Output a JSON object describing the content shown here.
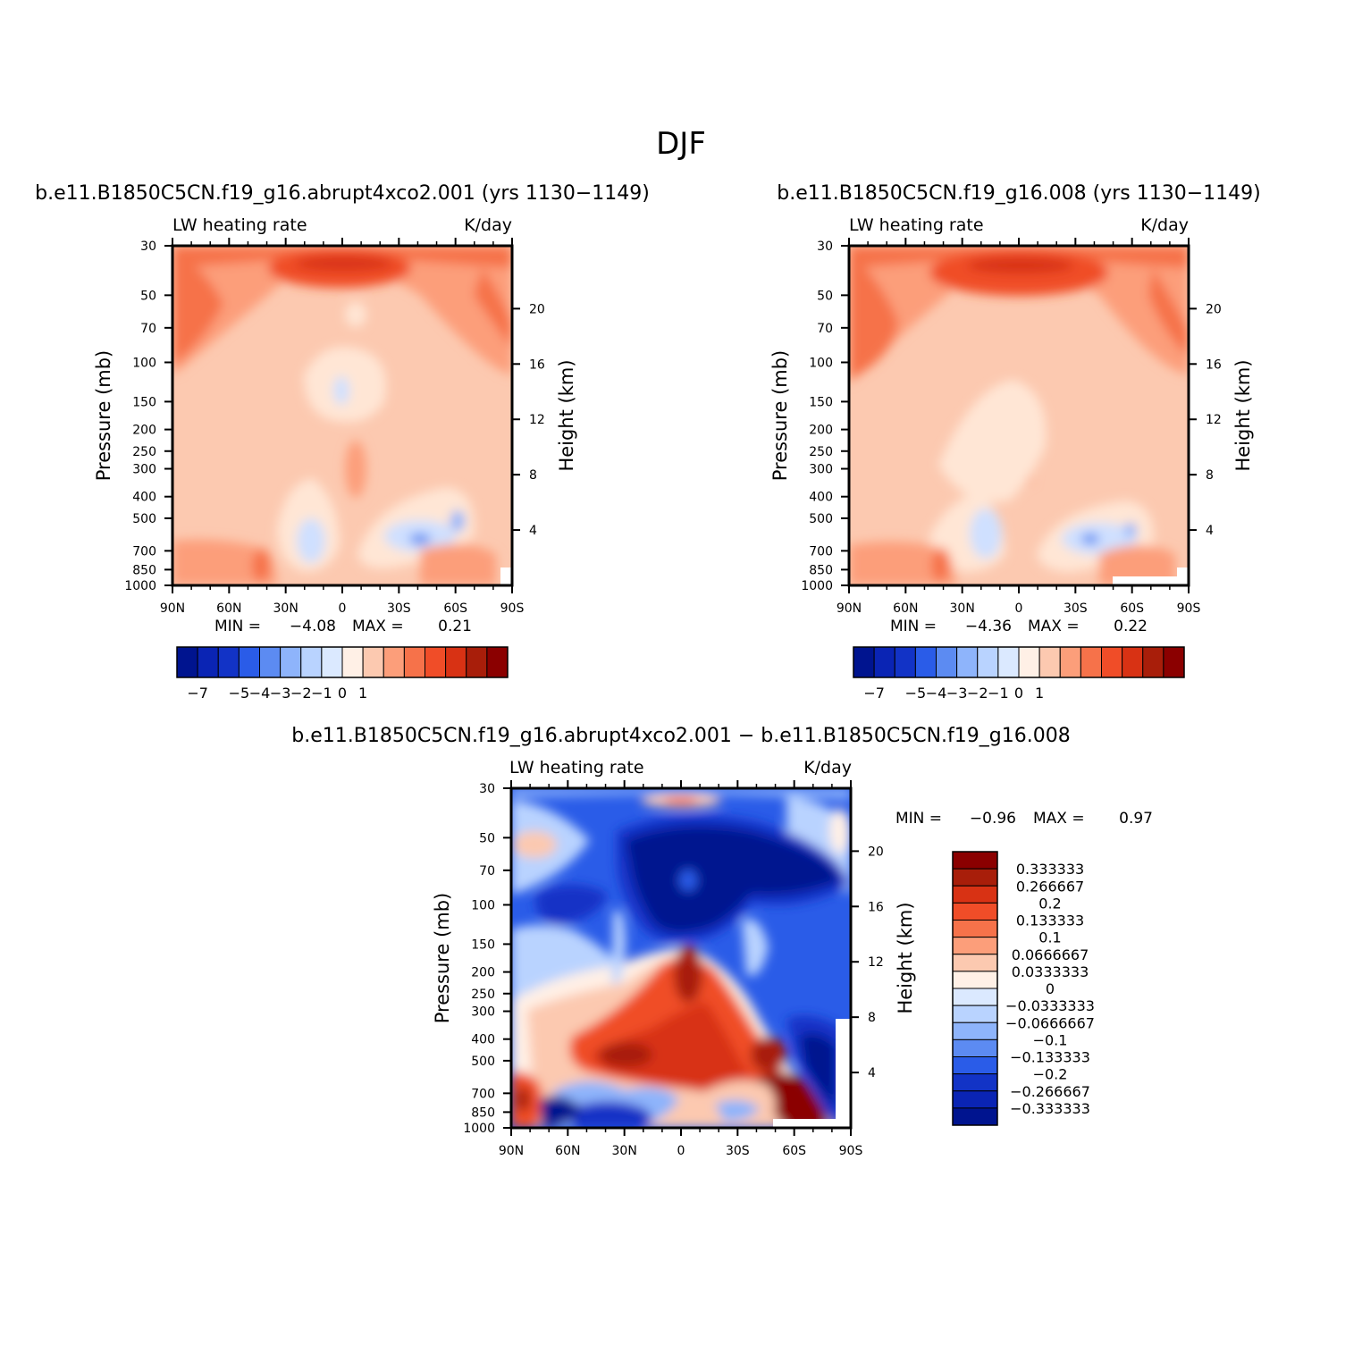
{
  "figure": {
    "title": "DJF"
  },
  "chart_data": [
    {
      "type": "heatmap",
      "title": "b.e11.B1850C5CN.f19_g16.abrupt4xco2.001 (yrs 1130−1149)",
      "left_label": "LW heating rate",
      "right_label": "K/day",
      "ylabel": "Pressure (mb)",
      "y2label": "Height (km)",
      "x_ticks": [
        "90N",
        "60N",
        "30N",
        "0",
        "30S",
        "60S",
        "90S"
      ],
      "xlim": [
        90,
        -90
      ],
      "y_ticks": [
        30,
        50,
        70,
        100,
        150,
        200,
        250,
        300,
        400,
        500,
        700,
        850,
        1000
      ],
      "y_scale": "log",
      "ylim": [
        1000,
        30
      ],
      "y2_ticks": [
        4,
        8,
        12,
        16,
        20
      ],
      "min_label": "MIN =",
      "min": "−4.08",
      "max_label": "MAX =",
      "max": "0.21",
      "colorbar_labels": [
        "−7",
        "−5",
        "−4",
        "−3",
        "−2",
        "−1",
        "0",
        "1"
      ],
      "colorbar_orientation": "horizontal"
    },
    {
      "type": "heatmap",
      "title": "b.e11.B1850C5CN.f19_g16.008 (yrs 1130−1149)",
      "left_label": "LW heating rate",
      "right_label": "K/day",
      "ylabel": "Pressure (mb)",
      "y2label": "Height (km)",
      "x_ticks": [
        "90N",
        "60N",
        "30N",
        "0",
        "30S",
        "60S",
        "90S"
      ],
      "xlim": [
        90,
        -90
      ],
      "y_ticks": [
        30,
        50,
        70,
        100,
        150,
        200,
        250,
        300,
        400,
        500,
        700,
        850,
        1000
      ],
      "y_scale": "log",
      "ylim": [
        1000,
        30
      ],
      "y2_ticks": [
        4,
        8,
        12,
        16,
        20
      ],
      "min_label": "MIN =",
      "min": "−4.36",
      "max_label": "MAX =",
      "max": "0.22",
      "colorbar_labels": [
        "−7",
        "−5",
        "−4",
        "−3",
        "−2",
        "−1",
        "0",
        "1"
      ],
      "colorbar_orientation": "horizontal"
    },
    {
      "type": "heatmap",
      "title": "b.e11.B1850C5CN.f19_g16.abrupt4xco2.001 − b.e11.B1850C5CN.f19_g16.008",
      "left_label": "LW heating rate",
      "right_label": "K/day",
      "ylabel": "Pressure (mb)",
      "y2label": "Height (km)",
      "x_ticks": [
        "90N",
        "60N",
        "30N",
        "0",
        "30S",
        "60S",
        "90S"
      ],
      "xlim": [
        90,
        -90
      ],
      "y_ticks": [
        30,
        50,
        70,
        100,
        150,
        200,
        250,
        300,
        400,
        500,
        700,
        850,
        1000
      ],
      "y_scale": "log",
      "ylim": [
        1000,
        30
      ],
      "y2_ticks": [
        4,
        8,
        12,
        16,
        20
      ],
      "min_label": "MIN =",
      "min": "−0.96",
      "max_label": "MAX =",
      "max": "0.97",
      "colorbar_labels": [
        "0.333333",
        "0.266667",
        "0.2",
        "0.133333",
        "0.1",
        "0.0666667",
        "0.0333333",
        "0",
        "−0.0333333",
        "−0.0666667",
        "−0.1",
        "−0.133333",
        "−0.2",
        "−0.266667",
        "−0.333333"
      ],
      "colorbar_orientation": "vertical"
    }
  ],
  "colors": {
    "diverging_scale": [
      "#00148f",
      "#0a24b4",
      "#1233c6",
      "#2a5ce8",
      "#5c8bf2",
      "#8eb4fb",
      "#b9d3ff",
      "#dbe9ff",
      "#fff0e6",
      "#fcc9b0",
      "#fc9e7a",
      "#f6724a",
      "#f04d28",
      "#d83214",
      "#a81e0a",
      "#8b0000"
    ]
  }
}
